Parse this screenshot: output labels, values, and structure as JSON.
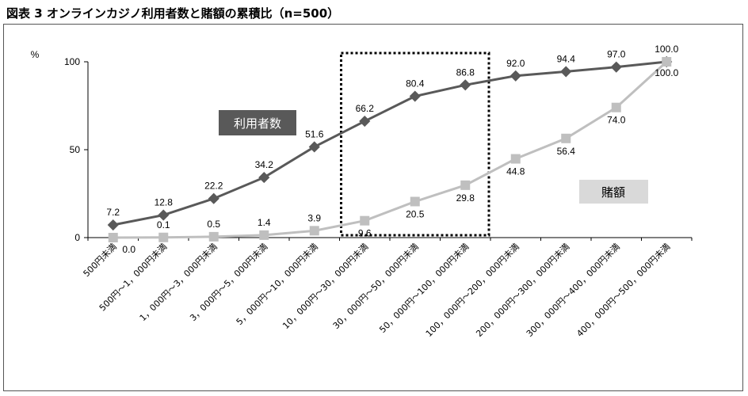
{
  "title": "図表 3 オンラインカジノ利用者数と賭額の累積比（n=500）",
  "chart_data": {
    "type": "line",
    "ylabel": "%",
    "ylim": [
      0,
      100
    ],
    "yticks": [
      0,
      50,
      100
    ],
    "categories": [
      "500円未満",
      "500円～1，000円未満",
      "1，000円～3，000円未満",
      "3，000円～5，000円未満",
      "5，000円～10，000円未満",
      "10，000円～30，000円未満",
      "30，000円～50，000円未満",
      "50，000円～100，000円未満",
      "100，000円～200，000円未満",
      "200，000円～300，000円未満",
      "300，000円～400，000円未満",
      "400，000円～500，000円未満"
    ],
    "series": [
      {
        "name": "利用者数",
        "color": "#595959",
        "values": [
          7.2,
          12.8,
          22.2,
          34.2,
          51.6,
          66.2,
          80.4,
          86.8,
          92.0,
          94.4,
          97.0,
          100.0
        ],
        "labels": [
          "7.2",
          "12.8",
          "22.2",
          "34.2",
          "51.6",
          "66.2",
          "80.4",
          "86.8",
          "92.0",
          "94.4",
          "97.0",
          "100.0"
        ]
      },
      {
        "name": "賭額",
        "color": "#bfbfbf",
        "values": [
          0.0,
          0.1,
          0.5,
          1.4,
          3.9,
          9.6,
          20.5,
          29.8,
          44.8,
          56.4,
          74.0,
          100.0
        ],
        "labels": [
          "0.0",
          "0.1",
          "0.5",
          "1.4",
          "3.9",
          "9.6",
          "20.5",
          "29.8",
          "44.8",
          "56.4",
          "74.0",
          "100.0"
        ]
      }
    ],
    "highlight": {
      "from_category": "10，000円～30，000円未満",
      "to_category": "50，000円～100，000円未満",
      "style": "dotted box"
    }
  }
}
